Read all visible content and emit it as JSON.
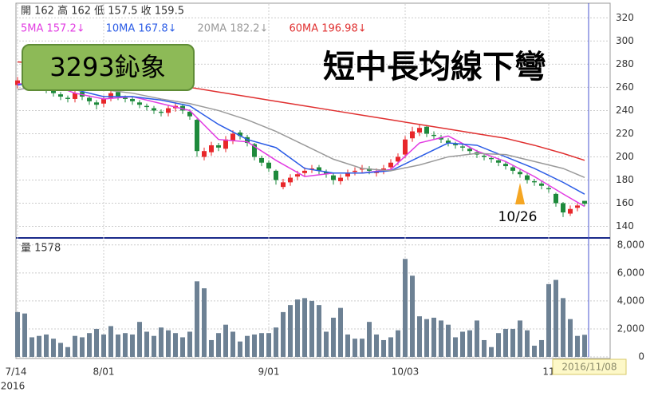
{
  "chart_data": {
    "type": "candlestick",
    "header": "開 162 高 162 低 157.5 收 159.5",
    "stock_label": "3293鈊象",
    "title": "短中長均線下彎",
    "year_label": "2016",
    "cursor_label": "2016/11/08",
    "categories": [
      "7/14",
      null,
      null,
      null,
      null,
      null,
      null,
      null,
      null,
      null,
      null,
      null,
      "8/01",
      null,
      null,
      null,
      null,
      null,
      null,
      null,
      null,
      null,
      null,
      null,
      null,
      null,
      null,
      null,
      null,
      null,
      null,
      null,
      null,
      null,
      null,
      "9/01",
      null,
      null,
      null,
      null,
      null,
      null,
      null,
      null,
      null,
      null,
      null,
      null,
      null,
      null,
      null,
      null,
      null,
      null,
      "10/03",
      null,
      null,
      null,
      null,
      null,
      null,
      null,
      null,
      null,
      null,
      null,
      null,
      null,
      null,
      null,
      null,
      null,
      null,
      null,
      "11",
      null,
      null,
      null,
      null,
      null
    ],
    "open": [
      262,
      265,
      271,
      267,
      262,
      257,
      254,
      251,
      250,
      256,
      251,
      247,
      246,
      251,
      256,
      251,
      250,
      247,
      244,
      242,
      239,
      238,
      242,
      244,
      239,
      232,
      200,
      204,
      210,
      207,
      214,
      221,
      217,
      211,
      199,
      195,
      188,
      174,
      178,
      183,
      186,
      189,
      191,
      187,
      184,
      179,
      183,
      187,
      189,
      190,
      186,
      188,
      191,
      196,
      202,
      216,
      221,
      226,
      219,
      217,
      214,
      211,
      209,
      207,
      204,
      201,
      199,
      197,
      194,
      191,
      187,
      184,
      179,
      177,
      173,
      168,
      160,
      151,
      156,
      162
    ],
    "high": [
      269,
      273,
      274,
      269,
      264,
      259,
      256,
      253,
      258,
      258,
      253,
      249,
      253,
      258,
      258,
      253,
      252,
      249,
      246,
      244,
      241,
      245,
      247,
      246,
      241,
      233,
      208,
      213,
      212,
      218,
      223,
      223,
      219,
      212,
      201,
      197,
      189,
      181,
      185,
      188,
      191,
      193,
      193,
      189,
      186,
      185,
      189,
      191,
      193,
      192,
      190,
      193,
      198,
      203,
      218,
      226,
      228,
      227,
      222,
      219,
      216,
      213,
      211,
      209,
      206,
      203,
      201,
      199,
      196,
      193,
      189,
      186,
      181,
      179,
      175,
      169,
      161,
      158,
      160,
      162
    ],
    "low": [
      259,
      262,
      265,
      259,
      255,
      252,
      249,
      247,
      247,
      249,
      245,
      241,
      243,
      248,
      249,
      247,
      245,
      242,
      240,
      237,
      235,
      235,
      239,
      237,
      232,
      200,
      197,
      201,
      205,
      204,
      211,
      215,
      209,
      197,
      192,
      187,
      176,
      172,
      175,
      180,
      183,
      186,
      185,
      182,
      176,
      176,
      180,
      184,
      186,
      185,
      183,
      185,
      188,
      193,
      199,
      213,
      218,
      217,
      215,
      212,
      209,
      207,
      205,
      202,
      199,
      197,
      195,
      192,
      189,
      185,
      182,
      177,
      175,
      172,
      169,
      157,
      148,
      149,
      153,
      157.5
    ],
    "close": [
      266,
      270,
      268,
      262,
      258,
      255,
      252,
      250,
      255,
      252,
      248,
      245,
      250,
      255,
      252,
      250,
      248,
      245,
      243,
      240,
      238,
      242,
      244,
      240,
      235,
      205,
      205,
      210,
      208,
      215,
      220,
      218,
      212,
      200,
      195,
      190,
      180,
      178,
      182,
      185,
      188,
      190,
      188,
      185,
      180,
      182,
      186,
      188,
      190,
      188,
      187,
      190,
      195,
      200,
      215,
      222,
      225,
      220,
      218,
      215,
      212,
      210,
      208,
      205,
      202,
      200,
      198,
      195,
      192,
      188,
      185,
      180,
      178,
      175,
      172,
      160,
      152,
      155,
      158,
      159.5
    ],
    "up_color": "#e8272a",
    "down_color": "#1e8a3c",
    "series": [
      {
        "name": "5MA 157.2↓",
        "color": "#e23ce2",
        "x": [
          0,
          4,
          8,
          12,
          16,
          20,
          24,
          28,
          32,
          36,
          40,
          44,
          48,
          52,
          56,
          60,
          64,
          68,
          72,
          76,
          79
        ],
        "values": [
          263,
          264,
          255,
          250,
          252,
          246,
          240,
          215,
          213,
          197,
          183,
          186,
          186,
          189,
          212,
          218,
          205,
          196,
          183,
          168,
          157.2
        ]
      },
      {
        "name": "10MA 167.8↓",
        "color": "#2b5ce6",
        "x": [
          0,
          4,
          8,
          12,
          16,
          20,
          24,
          28,
          32,
          36,
          40,
          44,
          48,
          52,
          56,
          60,
          64,
          68,
          72,
          76,
          79
        ],
        "values": [
          262,
          265,
          258,
          252,
          252,
          249,
          244,
          228,
          215,
          208,
          190,
          186,
          186,
          188,
          200,
          212,
          210,
          200,
          190,
          178,
          167.8
        ]
      },
      {
        "name": "20MA 182.2↓",
        "color": "#9a9a9a",
        "x": [
          0,
          4,
          8,
          12,
          16,
          20,
          24,
          28,
          32,
          36,
          40,
          44,
          48,
          52,
          56,
          60,
          64,
          68,
          72,
          76,
          79
        ],
        "values": [
          258,
          262,
          262,
          258,
          255,
          250,
          246,
          240,
          232,
          222,
          210,
          198,
          190,
          188,
          193,
          200,
          203,
          202,
          196,
          190,
          182.2
        ]
      },
      {
        "name": "60MA 196.98↓",
        "color": "#e03030",
        "x": [
          0,
          4,
          8,
          12,
          16,
          20,
          24,
          28,
          32,
          36,
          40,
          44,
          48,
          52,
          56,
          60,
          64,
          68,
          72,
          76,
          79
        ],
        "values": [
          282,
          280,
          276,
          272,
          268,
          264,
          260,
          256,
          252,
          248,
          244,
          240,
          236,
          232,
          228,
          224,
          220,
          216,
          210,
          203,
          196.98
        ]
      }
    ],
    "ylim": [
      130,
      332
    ],
    "yticks": [
      140,
      160,
      180,
      200,
      220,
      240,
      260,
      280,
      300,
      320
    ],
    "grid": true,
    "annotation": {
      "text": "10/26",
      "x": 70,
      "color": "#f5a623"
    },
    "volume": {
      "label": "量 1578",
      "color": "#6d8194",
      "values": [
        3200,
        3100,
        1400,
        1500,
        1600,
        1300,
        1000,
        700,
        1500,
        1400,
        1700,
        2000,
        1600,
        2200,
        1600,
        1700,
        1600,
        2500,
        1800,
        1500,
        2100,
        1900,
        1700,
        1400,
        1800,
        5400,
        4900,
        1200,
        1700,
        2300,
        1800,
        1100,
        1500,
        1600,
        1700,
        1700,
        2100,
        3200,
        3700,
        4100,
        4200,
        4000,
        3700,
        1800,
        2800,
        3500,
        1600,
        1300,
        1300,
        2500,
        1600,
        1200,
        1400,
        1900,
        7000,
        5800,
        2900,
        2700,
        2800,
        2600,
        2300,
        1400,
        1800,
        1900,
        2600,
        1200,
        700,
        1700,
        2000,
        2000,
        2600,
        1900,
        800,
        1200,
        5200,
        5500,
        4200,
        2700,
        1500,
        1578
      ],
      "ylim": [
        0,
        8100
      ],
      "yticks": [
        0,
        {
          "value": 2000,
          "label": "2,000"
        },
        {
          "value": 4000,
          "label": "4,000"
        },
        {
          "value": 6000,
          "label": "6,000"
        },
        {
          "value": 8000,
          "label": "8,000"
        }
      ]
    }
  }
}
